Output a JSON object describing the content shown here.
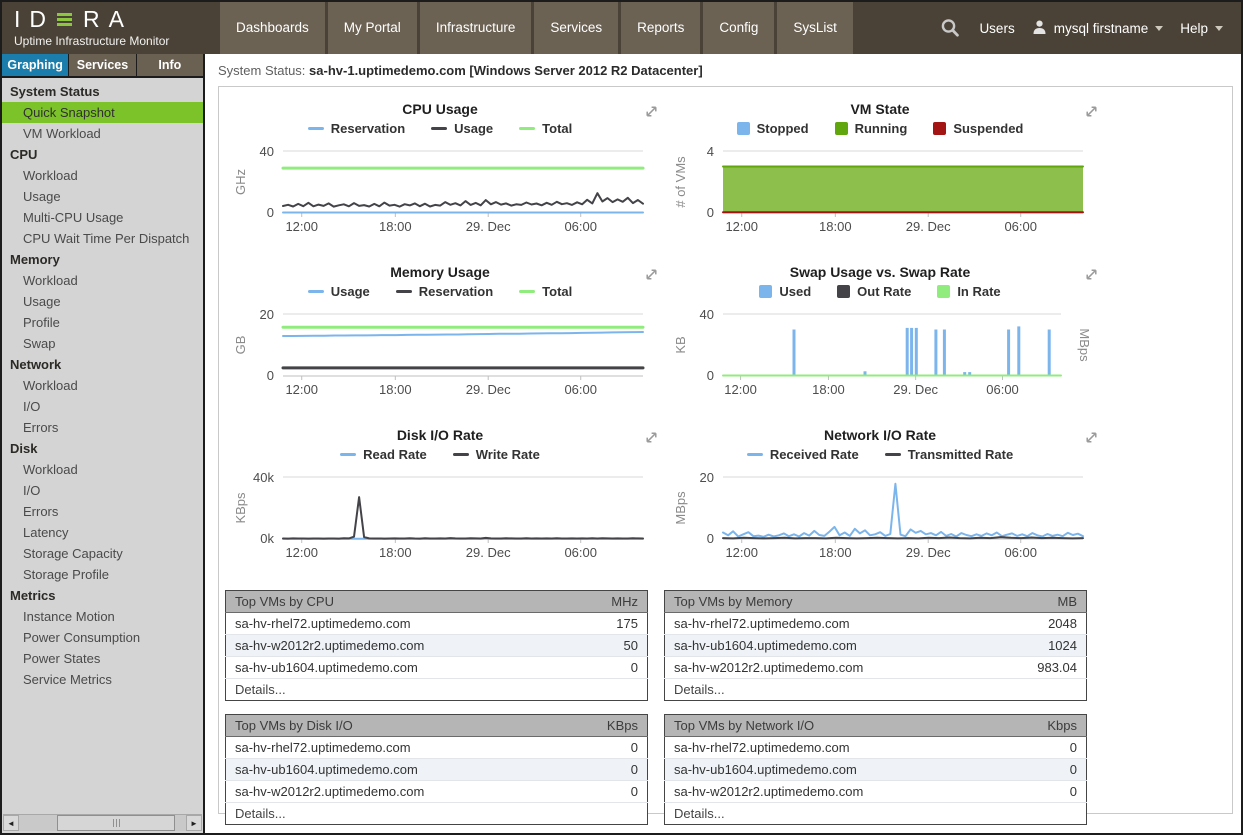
{
  "topnav": {
    "logo_left": "ID",
    "logo_right": "RA",
    "brand_subtitle": "Uptime Infrastructure Monitor",
    "menu": [
      "Dashboards",
      "My Portal",
      "Infrastructure",
      "Services",
      "Reports",
      "Config",
      "SysList"
    ],
    "users_label": "Users",
    "user_name": "mysql firstname",
    "help_label": "Help"
  },
  "sidebar": {
    "tabs": [
      {
        "label": "Graphing",
        "active": true
      },
      {
        "label": "Services",
        "active": false
      },
      {
        "label": "Info",
        "active": false
      }
    ],
    "sections": [
      {
        "header": "System Status",
        "items": [
          {
            "label": "Quick Snapshot",
            "selected": true
          },
          {
            "label": "VM Workload",
            "selected": false
          }
        ]
      },
      {
        "header": "CPU",
        "items": [
          {
            "label": "Workload"
          },
          {
            "label": "Usage"
          },
          {
            "label": "Multi-CPU Usage"
          },
          {
            "label": "CPU Wait Time Per Dispatch"
          }
        ]
      },
      {
        "header": "Memory",
        "items": [
          {
            "label": "Workload"
          },
          {
            "label": "Usage"
          },
          {
            "label": "Profile"
          },
          {
            "label": "Swap"
          }
        ]
      },
      {
        "header": "Network",
        "items": [
          {
            "label": "Workload"
          },
          {
            "label": "I/O"
          },
          {
            "label": "Errors"
          }
        ]
      },
      {
        "header": "Disk",
        "items": [
          {
            "label": "Workload"
          },
          {
            "label": "I/O"
          },
          {
            "label": "Errors"
          },
          {
            "label": "Latency"
          },
          {
            "label": "Storage Capacity"
          },
          {
            "label": "Storage Profile"
          }
        ]
      },
      {
        "header": "Metrics",
        "items": [
          {
            "label": "Instance Motion"
          },
          {
            "label": "Power Consumption"
          },
          {
            "label": "Power States"
          },
          {
            "label": "Service Metrics"
          }
        ]
      }
    ]
  },
  "status": {
    "label": "System Status:",
    "value": "sa-hv-1.uptimedemo.com [Windows Server 2012 R2 Datacenter]"
  },
  "colors": {
    "nav_bg": "#4a4236",
    "nav_button_bg": "#6b6254",
    "tab_active_blue": "#1a7dab",
    "sidebar_selected_green": "#7cc229",
    "series_blue": "#7cb5ec",
    "series_dark": "#434348",
    "series_green": "#90ed7d",
    "running_fill": "#8cbf4c",
    "running_stroke": "#62a60e",
    "suspended_red": "#a31515"
  },
  "chart_data": [
    {
      "title": "CPU Usage",
      "type": "line",
      "ylabel": "GHz",
      "ylim": [
        0,
        40
      ],
      "ytick_labels": [
        "0",
        "40"
      ],
      "xticks": {
        "pos": [
          0.052,
          0.312,
          0.57,
          0.827
        ],
        "labels": [
          "12:00",
          "18:00",
          "29. Dec",
          "06:00"
        ]
      },
      "series": [
        {
          "name": "Reservation",
          "color": "#7cb5ec",
          "marker": "line",
          "width": 2,
          "values": [
            0.35,
            0.35
          ]
        },
        {
          "name": "Usage",
          "color": "#434348",
          "marker": "line",
          "width": 2,
          "values": [
            4.5,
            5.3,
            4.2,
            5.9,
            4.4,
            6.6,
            4.3,
            5.4,
            4.6,
            6.2,
            4.1,
            5.0,
            5.6,
            4.3,
            6.4,
            4.6,
            5.1,
            4.2,
            5.9,
            4.3,
            6.7,
            4.8,
            5.3,
            4.1,
            5.7,
            4.9,
            6.2,
            4.4,
            6.0,
            4.2,
            5.2,
            4.8,
            7.0,
            5.3,
            6.3,
            4.9,
            7.7,
            5.2,
            6.5,
            5.0,
            8.3,
            5.6,
            7.0,
            5.4,
            6.2,
            4.8,
            5.6,
            5.2,
            6.8,
            5.5,
            6.1,
            5.0,
            6.6,
            5.3,
            7.2,
            5.7,
            6.3,
            5.2,
            6.9,
            5.6,
            8.5,
            6.2,
            12.8,
            7.4,
            9.6,
            7.0,
            8.8,
            7.2,
            9.8,
            6.4,
            8.4,
            6.0
          ]
        },
        {
          "name": "Total",
          "color": "#90ed7d",
          "marker": "line",
          "width": 3,
          "values": [
            29,
            29
          ]
        }
      ]
    },
    {
      "title": "VM State",
      "type": "area",
      "ylabel": "# of VMs",
      "ylim": [
        0,
        4
      ],
      "ytick_labels": [
        "0",
        "4"
      ],
      "xticks": {
        "pos": [
          0.052,
          0.312,
          0.57,
          0.827
        ],
        "labels": [
          "12:00",
          "18:00",
          "29. Dec",
          "06:00"
        ]
      },
      "series": [
        {
          "name": "Stopped",
          "color": "#7cb5ec",
          "marker": "square",
          "values": []
        },
        {
          "name": "Running",
          "color": "#62a60e",
          "fill": "#8cbf4c",
          "area": true,
          "marker": "square",
          "width": 2,
          "values": [
            3,
            3
          ]
        },
        {
          "name": "Suspended",
          "color": "#a31515",
          "marker": "square",
          "width": 2,
          "values": [
            0.05,
            0.05
          ]
        }
      ]
    },
    {
      "title": "Memory Usage",
      "type": "line",
      "ylabel": "GB",
      "ylim": [
        0,
        20
      ],
      "ytick_labels": [
        "0",
        "20"
      ],
      "xticks": {
        "pos": [
          0.052,
          0.312,
          0.57,
          0.827
        ],
        "labels": [
          "12:00",
          "18:00",
          "29. Dec",
          "06:00"
        ]
      },
      "series": [
        {
          "name": "Usage",
          "color": "#7cb5ec",
          "marker": "line",
          "width": 2,
          "values": [
            12.9,
            12.9,
            12.95,
            13.0,
            13.0,
            13.05,
            13.05,
            13.1,
            13.1,
            13.15,
            13.2,
            13.2,
            13.25,
            13.3,
            13.3,
            13.35,
            13.4,
            13.4,
            13.45,
            13.5,
            13.55,
            13.6,
            13.6,
            13.65,
            13.7,
            13.75,
            13.8,
            13.8,
            13.85,
            13.9,
            13.95,
            14.0,
            14.05,
            14.1,
            14.15,
            14.2
          ]
        },
        {
          "name": "Reservation",
          "color": "#434348",
          "marker": "line",
          "width": 3,
          "values": [
            2.6,
            2.6
          ]
        },
        {
          "name": "Total",
          "color": "#90ed7d",
          "marker": "line",
          "width": 3,
          "values": [
            15.7,
            15.7
          ]
        }
      ]
    },
    {
      "title": "Swap Usage vs. Swap Rate",
      "type": "column",
      "ylabel": "KB",
      "ylabel_right": "MBps",
      "ylim": [
        0,
        40
      ],
      "ytick_labels": [
        "0",
        "40"
      ],
      "xticks": {
        "pos": [
          0.052,
          0.312,
          0.57,
          0.827
        ],
        "labels": [
          "12:00",
          "18:00",
          "29. Dec",
          "06:00"
        ]
      },
      "series": [
        {
          "name": "Used",
          "color": "#7cb5ec",
          "marker": "square",
          "bars": [
            [
              0.21,
              30
            ],
            [
              0.42,
              3
            ],
            [
              0.545,
              31
            ],
            [
              0.558,
              31
            ],
            [
              0.572,
              31
            ],
            [
              0.63,
              30
            ],
            [
              0.655,
              30
            ],
            [
              0.715,
              2.5
            ],
            [
              0.73,
              2.5
            ],
            [
              0.845,
              30
            ],
            [
              0.875,
              32
            ],
            [
              0.965,
              30
            ]
          ]
        },
        {
          "name": "Out Rate",
          "color": "#434348",
          "marker": "square",
          "values": []
        },
        {
          "name": "In Rate",
          "color": "#90ed7d",
          "marker": "square",
          "width": 2,
          "values": [
            0.3,
            0.3
          ]
        }
      ]
    },
    {
      "title": "Disk I/O Rate",
      "type": "line",
      "ylabel": "KBps",
      "ylim": [
        0,
        40000
      ],
      "ytick_labels": [
        "0k",
        "40k"
      ],
      "xticks": {
        "pos": [
          0.052,
          0.312,
          0.57,
          0.827
        ],
        "labels": [
          "12:00",
          "18:00",
          "29. Dec",
          "06:00"
        ]
      },
      "series": [
        {
          "name": "Read Rate",
          "color": "#7cb5ec",
          "marker": "line",
          "width": 2,
          "values": [
            150,
            150
          ]
        },
        {
          "name": "Write Rate",
          "color": "#434348",
          "marker": "line",
          "width": 2,
          "values": [
            300,
            250,
            400,
            300,
            350,
            280,
            320,
            300,
            260,
            340,
            300,
            280,
            450,
            380,
            1500,
            27000,
            1200,
            400,
            300,
            350,
            280,
            320,
            400,
            300,
            350,
            500,
            300,
            280,
            420,
            350,
            300,
            380,
            320,
            600,
            400,
            350,
            300,
            450,
            380,
            320,
            700,
            400,
            350,
            300,
            420,
            380,
            320,
            300,
            500,
            350,
            400,
            320,
            380,
            300,
            450,
            350,
            320,
            400,
            300,
            380,
            350,
            420,
            300,
            450,
            380,
            320,
            400,
            350,
            300,
            420,
            380,
            320
          ]
        }
      ]
    },
    {
      "title": "Network I/O Rate",
      "type": "line",
      "ylabel": "MBps",
      "ylim": [
        0,
        20
      ],
      "ytick_labels": [
        "0",
        "20"
      ],
      "xticks": {
        "pos": [
          0.052,
          0.312,
          0.57,
          0.827
        ],
        "labels": [
          "12:00",
          "18:00",
          "29. Dec",
          "06:00"
        ]
      },
      "series": [
        {
          "name": "Received Rate",
          "color": "#7cb5ec",
          "marker": "line",
          "width": 2,
          "values": [
            2.1,
            1.2,
            2.5,
            0.8,
            1.5,
            2.2,
            0.9,
            1.1,
            0.7,
            1.4,
            0.8,
            1.2,
            1.8,
            0.9,
            1.5,
            0.8,
            1.9,
            1.1,
            2.6,
            1.3,
            1.0,
            2.4,
            3.9,
            1.2,
            2.1,
            1.0,
            3.3,
            1.8,
            2.8,
            1.2,
            1.5,
            2.2,
            1.0,
            1.6,
            17.8,
            1.4,
            0.9,
            3.1,
            2.0,
            2.6,
            1.5,
            1.9,
            1.2,
            2.3,
            1.0,
            1.6,
            0.8,
            1.9,
            1.3,
            0.9,
            1.5,
            1.0,
            1.8,
            1.2,
            2.1,
            0.9,
            1.4,
            1.8,
            1.0,
            1.5,
            0.9,
            1.9,
            1.2,
            0.8,
            1.6,
            1.0,
            1.4,
            0.9,
            2.0,
            1.3,
            1.7,
            0.9
          ]
        },
        {
          "name": "Transmitted Rate",
          "color": "#434348",
          "marker": "line",
          "width": 2,
          "values": [
            0.3,
            0.2,
            0.4,
            0.3,
            0.2,
            0.3,
            0.4,
            0.2,
            0.3,
            0.3,
            0.2,
            0.4,
            0.3,
            0.2,
            0.3,
            0.4,
            0.3,
            0.2,
            0.3,
            0.2,
            0.4,
            0.3,
            0.5,
            0.3,
            0.2,
            0.4,
            0.3,
            0.6,
            0.4,
            0.3,
            0.5,
            0.3,
            0.4,
            0.3,
            0.2,
            0.3
          ]
        }
      ]
    }
  ],
  "tables": [
    {
      "title": "Top VMs by CPU",
      "unit": "MHz",
      "details": "Details...",
      "rows": [
        [
          "sa-hv-rhel72.uptimedemo.com",
          "175"
        ],
        [
          "sa-hv-w2012r2.uptimedemo.com",
          "50"
        ],
        [
          "sa-hv-ub1604.uptimedemo.com",
          "0"
        ]
      ]
    },
    {
      "title": "Top VMs by Memory",
      "unit": "MB",
      "details": "Details...",
      "rows": [
        [
          "sa-hv-rhel72.uptimedemo.com",
          "2048"
        ],
        [
          "sa-hv-ub1604.uptimedemo.com",
          "1024"
        ],
        [
          "sa-hv-w2012r2.uptimedemo.com",
          "983.04"
        ]
      ]
    },
    {
      "title": "Top VMs by Disk I/O",
      "unit": "KBps",
      "details": "Details...",
      "rows": [
        [
          "sa-hv-rhel72.uptimedemo.com",
          "0"
        ],
        [
          "sa-hv-ub1604.uptimedemo.com",
          "0"
        ],
        [
          "sa-hv-w2012r2.uptimedemo.com",
          "0"
        ]
      ]
    },
    {
      "title": "Top VMs by Network I/O",
      "unit": "Kbps",
      "details": "Details...",
      "rows": [
        [
          "sa-hv-rhel72.uptimedemo.com",
          "0"
        ],
        [
          "sa-hv-ub1604.uptimedemo.com",
          "0"
        ],
        [
          "sa-hv-w2012r2.uptimedemo.com",
          "0"
        ]
      ]
    }
  ]
}
